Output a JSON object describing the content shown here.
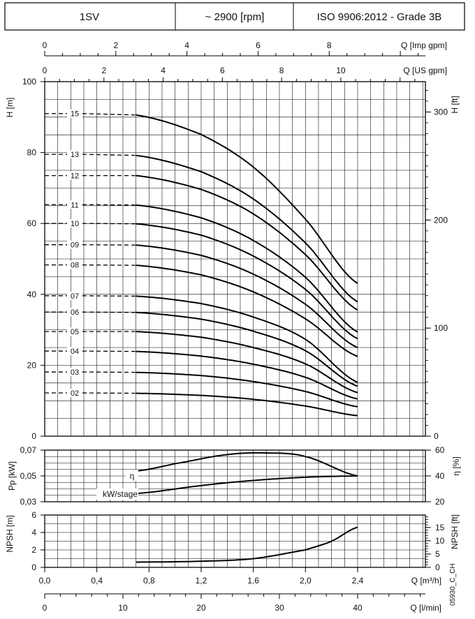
{
  "header": {
    "model": "1SV",
    "speed": "~ 2900 [rpm]",
    "standard": "ISO 9906:2012 - Grade 3B"
  },
  "code": "05930_C_CH",
  "chart_data": [
    {
      "type": "line",
      "name": "head",
      "xlabel": "Q [m³/h]",
      "ylabel": "H [m]",
      "y2label": "H [ft]",
      "xlim": [
        0,
        2.92
      ],
      "ylim": [
        0,
        100
      ],
      "x_ticks": [
        0,
        0.4,
        0.8,
        1.2,
        1.6,
        2.0,
        2.4
      ],
      "y_ticks": [
        0,
        20,
        40,
        60,
        80,
        100
      ],
      "y2_ticks": [
        0,
        100,
        200,
        300
      ],
      "top_axes": [
        {
          "label": "Q [Imp gpm]",
          "ticks": [
            0,
            2,
            4,
            6,
            8
          ]
        },
        {
          "label": "Q [US gpm]",
          "ticks": [
            0,
            2,
            4,
            6,
            8,
            10
          ]
        }
      ],
      "grid": true,
      "x_start": 0.7,
      "x_end": 2.4,
      "series": [
        {
          "name": "15",
          "h0": 91,
          "values": [
            [
              0.7,
              90.6
            ],
            [
              1.2,
              85.1
            ],
            [
              1.6,
              75.9
            ],
            [
              2.0,
              61.2
            ],
            [
              2.4,
              43.1
            ]
          ]
        },
        {
          "name": "13",
          "h0": 79.5,
          "values": [
            [
              0.7,
              79.2
            ],
            [
              1.2,
              74.6
            ],
            [
              1.6,
              66.9
            ],
            [
              2.0,
              54.5
            ],
            [
              2.4,
              37.9
            ]
          ]
        },
        {
          "name": "12",
          "h0": 73.5,
          "values": [
            [
              0.7,
              73.5
            ],
            [
              1.2,
              69.6
            ],
            [
              1.6,
              62.7
            ],
            [
              2.0,
              51.2
            ],
            [
              2.4,
              35.6
            ]
          ]
        },
        {
          "name": "11",
          "h0": 65.3,
          "values": [
            [
              0.7,
              65.2
            ],
            [
              1.2,
              61.6
            ],
            [
              1.6,
              55.2
            ],
            [
              2.0,
              44.8
            ],
            [
              2.4,
              29.4
            ]
          ]
        },
        {
          "name": "10",
          "h0": 60,
          "values": [
            [
              0.7,
              59.9
            ],
            [
              1.2,
              56.7
            ],
            [
              1.6,
              50.8
            ],
            [
              2.0,
              41.4
            ],
            [
              2.4,
              27.5
            ]
          ]
        },
        {
          "name": "09",
          "h0": 54,
          "values": [
            [
              0.7,
              53.9
            ],
            [
              1.2,
              51.0
            ],
            [
              1.6,
              45.7
            ],
            [
              2.0,
              37.2
            ],
            [
              2.4,
              25.0
            ]
          ]
        },
        {
          "name": "08",
          "h0": 48.3,
          "values": [
            [
              0.7,
              48.2
            ],
            [
              1.2,
              45.5
            ],
            [
              1.6,
              40.7
            ],
            [
              2.0,
              33.1
            ],
            [
              2.4,
              22.5
            ]
          ]
        },
        {
          "name": "07",
          "h0": 39.6,
          "values": [
            [
              0.7,
              39.5
            ],
            [
              1.2,
              37.4
            ],
            [
              1.6,
              33.6
            ],
            [
              2.0,
              27.3
            ],
            [
              2.4,
              15.2
            ]
          ]
        },
        {
          "name": "06",
          "h0": 35,
          "values": [
            [
              0.7,
              34.9
            ],
            [
              1.2,
              33.0
            ],
            [
              1.6,
              29.6
            ],
            [
              2.0,
              24.1
            ],
            [
              2.4,
              14.1
            ]
          ]
        },
        {
          "name": "05",
          "h0": 29.5,
          "values": [
            [
              0.7,
              29.5
            ],
            [
              1.2,
              27.9
            ],
            [
              1.6,
              25.0
            ],
            [
              2.0,
              20.4
            ],
            [
              2.4,
              12.3
            ]
          ]
        },
        {
          "name": "04",
          "h0": 24,
          "values": [
            [
              0.7,
              23.9
            ],
            [
              1.2,
              22.6
            ],
            [
              1.6,
              20.3
            ],
            [
              2.0,
              16.6
            ],
            [
              2.4,
              10.5
            ]
          ]
        },
        {
          "name": "03",
          "h0": 18.1,
          "values": [
            [
              0.7,
              18.0
            ],
            [
              1.2,
              17.1
            ],
            [
              1.6,
              15.4
            ],
            [
              2.0,
              12.6
            ],
            [
              2.4,
              8.3
            ]
          ]
        },
        {
          "name": "02",
          "h0": 12.2,
          "values": [
            [
              0.7,
              12.1
            ],
            [
              1.2,
              11.5
            ],
            [
              1.6,
              10.4
            ],
            [
              2.0,
              8.5
            ],
            [
              2.4,
              5.8
            ]
          ]
        }
      ]
    },
    {
      "type": "line",
      "name": "power-efficiency",
      "ylabel": "Pp [kW]",
      "y2label": "η [%]",
      "xlim": [
        0,
        2.92
      ],
      "ylim": [
        0.03,
        0.07
      ],
      "y_ticks": [
        "0,03",
        "0,05",
        "0,07"
      ],
      "y2lim": [
        20,
        60
      ],
      "y2_ticks": [
        20,
        40,
        60
      ],
      "grid": true,
      "series": [
        {
          "name": "η",
          "axis": "right",
          "values": [
            [
              0.7,
              43.8
            ],
            [
              1.0,
              49.5
            ],
            [
              1.4,
              56.5
            ],
            [
              1.7,
              57.8
            ],
            [
              2.0,
              55.0
            ],
            [
              2.4,
              40.0
            ]
          ]
        },
        {
          "name": "kW/stage",
          "axis": "left",
          "values": [
            [
              0.7,
              0.0364
            ],
            [
              1.2,
              0.0425
            ],
            [
              1.6,
              0.0465
            ],
            [
              2.0,
              0.049
            ],
            [
              2.4,
              0.05
            ]
          ]
        }
      ]
    },
    {
      "type": "line",
      "name": "npsh",
      "ylabel": "NPSH [m]",
      "y2label": "NPSH [ft]",
      "xlim": [
        0,
        2.92
      ],
      "ylim": [
        0,
        6
      ],
      "y_ticks": [
        0,
        2,
        4,
        6
      ],
      "y2_ticks": [
        0,
        5,
        10,
        15
      ],
      "grid": true,
      "series": [
        {
          "name": "NPSH",
          "values": [
            [
              0.7,
              0.6
            ],
            [
              1.2,
              0.7
            ],
            [
              1.6,
              1.0
            ],
            [
              2.0,
              2.0
            ],
            [
              2.2,
              3.0
            ],
            [
              2.4,
              4.6
            ]
          ]
        }
      ]
    },
    {
      "type": "axis",
      "name": "flow-litres",
      "xlabel": "Q [l/min]",
      "x_ticks": [
        0,
        10,
        20,
        30,
        40
      ]
    }
  ]
}
